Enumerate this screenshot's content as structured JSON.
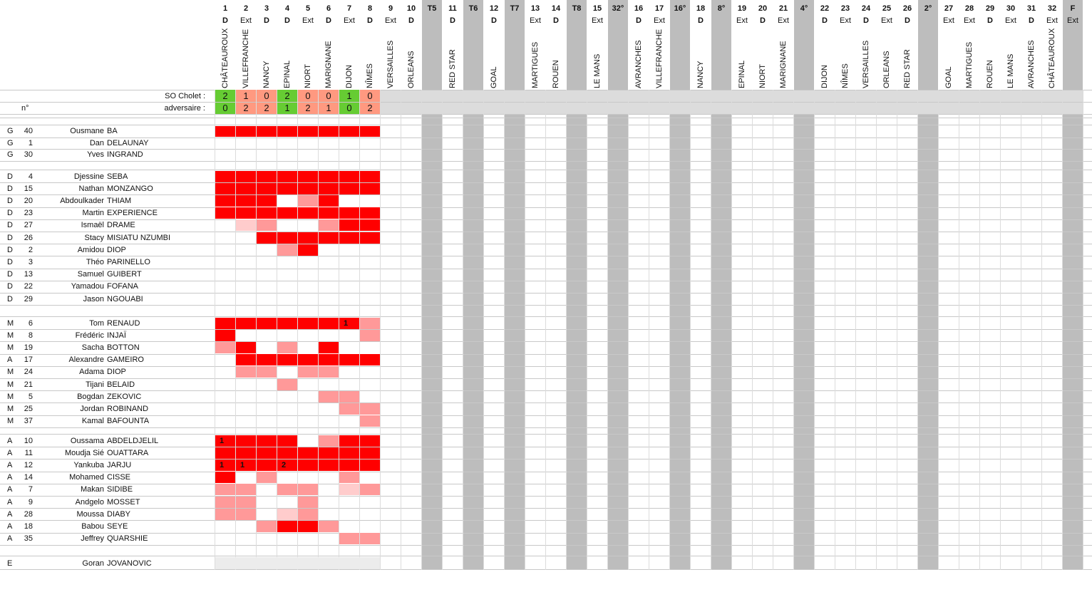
{
  "header": {
    "so_label": "SO Cholet :",
    "adv_label": "adversaire :",
    "n_label": "n°"
  },
  "columns": [
    {
      "label": "1",
      "venue": "D",
      "opponent": "CHÂTEAUROUX",
      "so": "2",
      "adv": "0",
      "result": "win"
    },
    {
      "label": "2",
      "venue": "Ext",
      "opponent": "VILLEFRANCHE",
      "so": "1",
      "adv": "2",
      "result": "loss"
    },
    {
      "label": "3",
      "venue": "D",
      "opponent": "NANCY",
      "so": "0",
      "adv": "2",
      "result": "loss"
    },
    {
      "label": "4",
      "venue": "D",
      "opponent": "EPINAL",
      "so": "2",
      "adv": "1",
      "result": "win"
    },
    {
      "label": "5",
      "venue": "Ext",
      "opponent": "NIORT",
      "so": "0",
      "adv": "2",
      "result": "loss"
    },
    {
      "label": "6",
      "venue": "D",
      "opponent": "MARIGNANE",
      "so": "0",
      "adv": "1",
      "result": "loss"
    },
    {
      "label": "7",
      "venue": "Ext",
      "opponent": "DIJON",
      "so": "1",
      "adv": "0",
      "result": "win"
    },
    {
      "label": "8",
      "venue": "D",
      "opponent": "NÎMES",
      "so": "0",
      "adv": "2",
      "result": "loss"
    },
    {
      "label": "9",
      "venue": "Ext",
      "opponent": "VERSAILLES",
      "so": "",
      "adv": "",
      "result": ""
    },
    {
      "label": "10",
      "venue": "D",
      "opponent": "ORLEANS",
      "so": "",
      "adv": "",
      "result": ""
    },
    {
      "label": "T5",
      "venue": "",
      "opponent": "",
      "so": "",
      "adv": "",
      "result": "",
      "cup": true
    },
    {
      "label": "11",
      "venue": "D",
      "opponent": "RED STAR",
      "so": "",
      "adv": "",
      "result": ""
    },
    {
      "label": "T6",
      "venue": "",
      "opponent": "",
      "so": "",
      "adv": "",
      "result": "",
      "cup": true
    },
    {
      "label": "12",
      "venue": "D",
      "opponent": "GOAL",
      "so": "",
      "adv": "",
      "result": ""
    },
    {
      "label": "T7",
      "venue": "",
      "opponent": "",
      "so": "",
      "adv": "",
      "result": "",
      "cup": true
    },
    {
      "label": "13",
      "venue": "Ext",
      "opponent": "MARTIGUES",
      "so": "",
      "adv": "",
      "result": ""
    },
    {
      "label": "14",
      "venue": "D",
      "opponent": "ROUEN",
      "so": "",
      "adv": "",
      "result": ""
    },
    {
      "label": "T8",
      "venue": "",
      "opponent": "",
      "so": "",
      "adv": "",
      "result": "",
      "cup": true
    },
    {
      "label": "15",
      "venue": "Ext",
      "opponent": "LE MANS",
      "so": "",
      "adv": "",
      "result": ""
    },
    {
      "label": "32°",
      "venue": "",
      "opponent": "",
      "so": "",
      "adv": "",
      "result": "",
      "cup": true
    },
    {
      "label": "16",
      "venue": "D",
      "opponent": "AVRANCHES",
      "so": "",
      "adv": "",
      "result": ""
    },
    {
      "label": "17",
      "venue": "Ext",
      "opponent": "VILLEFRANCHE",
      "so": "",
      "adv": "",
      "result": ""
    },
    {
      "label": "16°",
      "venue": "",
      "opponent": "",
      "so": "",
      "adv": "",
      "result": "",
      "cup": true
    },
    {
      "label": "18",
      "venue": "D",
      "opponent": "NANCY",
      "so": "",
      "adv": "",
      "result": ""
    },
    {
      "label": "8°",
      "venue": "",
      "opponent": "",
      "so": "",
      "adv": "",
      "result": "",
      "cup": true
    },
    {
      "label": "19",
      "venue": "Ext",
      "opponent": "EPINAL",
      "so": "",
      "adv": "",
      "result": ""
    },
    {
      "label": "20",
      "venue": "D",
      "opponent": "NIORT",
      "so": "",
      "adv": "",
      "result": ""
    },
    {
      "label": "21",
      "venue": "Ext",
      "opponent": "MARIGNANE",
      "so": "",
      "adv": "",
      "result": ""
    },
    {
      "label": "4°",
      "venue": "",
      "opponent": "",
      "so": "",
      "adv": "",
      "result": "",
      "cup": true
    },
    {
      "label": "22",
      "venue": "D",
      "opponent": "DIJON",
      "so": "",
      "adv": "",
      "result": ""
    },
    {
      "label": "23",
      "venue": "Ext",
      "opponent": "NÎMES",
      "so": "",
      "adv": "",
      "result": ""
    },
    {
      "label": "24",
      "venue": "D",
      "opponent": "VERSAILLES",
      "so": "",
      "adv": "",
      "result": ""
    },
    {
      "label": "25",
      "venue": "Ext",
      "opponent": "ORLEANS",
      "so": "",
      "adv": "",
      "result": ""
    },
    {
      "label": "26",
      "venue": "D",
      "opponent": "RED STAR",
      "so": "",
      "adv": "",
      "result": ""
    },
    {
      "label": "2°",
      "venue": "",
      "opponent": "",
      "so": "",
      "adv": "",
      "result": "",
      "cup": true
    },
    {
      "label": "27",
      "venue": "Ext",
      "opponent": "GOAL",
      "so": "",
      "adv": "",
      "result": ""
    },
    {
      "label": "28",
      "venue": "Ext",
      "opponent": "MARTIGUES",
      "so": "",
      "adv": "",
      "result": ""
    },
    {
      "label": "29",
      "venue": "D",
      "opponent": "ROUEN",
      "so": "",
      "adv": "",
      "result": ""
    },
    {
      "label": "30",
      "venue": "Ext",
      "opponent": "LE MANS",
      "so": "",
      "adv": "",
      "result": ""
    },
    {
      "label": "31",
      "venue": "D",
      "opponent": "AVRANCHES",
      "so": "",
      "adv": "",
      "result": ""
    },
    {
      "label": "32",
      "venue": "Ext",
      "opponent": "CHÂTEAUROUX",
      "so": "",
      "adv": "",
      "result": ""
    },
    {
      "label": "F",
      "venue": "Ext",
      "opponent": "",
      "so": "",
      "adv": "",
      "result": "",
      "cup": true
    }
  ],
  "colors": {
    "start": "#ff0000",
    "sub": "#ff9999",
    "light": "#ffcccc",
    "win": "#66cc33",
    "loss": "#ff9980",
    "cup": "#bdbdbd",
    "header_row": "#dcdcdc",
    "coach_row": "#ececec"
  },
  "groups": [
    {
      "players": [
        {
          "pos": "G",
          "num": "40",
          "first": "Ousmane",
          "last": "BA",
          "games": "SSSSSSSS",
          "goals": []
        },
        {
          "pos": "G",
          "num": "1",
          "first": "Dan",
          "last": "DELAUNAY",
          "games": "........",
          "goals": []
        },
        {
          "pos": "G",
          "num": "30",
          "first": "Yves",
          "last": "INGRAND",
          "games": "........",
          "goals": []
        }
      ]
    },
    {
      "players": [
        {
          "pos": "D",
          "num": "4",
          "first": "Djessine",
          "last": "SEBA",
          "games": "SSSSSSSS",
          "goals": []
        },
        {
          "pos": "D",
          "num": "15",
          "first": "Nathan",
          "last": "MONZANGO",
          "games": "SSSSSSSS",
          "goals": []
        },
        {
          "pos": "D",
          "num": "20",
          "first": "Abdoulkader",
          "last": "THIAM",
          "games": "SSS.bS..",
          "goals": []
        },
        {
          "pos": "D",
          "num": "23",
          "first": "Martin",
          "last": "EXPERIENCE",
          "games": "SSSSSSSS",
          "goals": []
        },
        {
          "pos": "D",
          "num": "27",
          "first": "Ismaël",
          "last": "DRAME",
          "games": ".lb..bSS",
          "goals": []
        },
        {
          "pos": "D",
          "num": "26",
          "first": "Stacy",
          "last": "MISIATU NZUMBI",
          "games": "..SSSSSS",
          "goals": []
        },
        {
          "pos": "D",
          "num": "2",
          "first": "Amidou",
          "last": "DIOP",
          "games": "...bS...",
          "goals": []
        },
        {
          "pos": "D",
          "num": "3",
          "first": "Théo",
          "last": "PARINELLO",
          "games": "........",
          "goals": []
        },
        {
          "pos": "D",
          "num": "13",
          "first": "Samuel",
          "last": "GUIBERT",
          "games": "........",
          "goals": []
        },
        {
          "pos": "D",
          "num": "22",
          "first": "Yamadou",
          "last": "FOFANA",
          "games": "........",
          "goals": []
        },
        {
          "pos": "D",
          "num": "29",
          "first": "Jason",
          "last": "NGOUABI",
          "games": "........",
          "goals": []
        }
      ]
    },
    {
      "players": [
        {
          "pos": "M",
          "num": "6",
          "first": "Tom",
          "last": "RENAUD",
          "games": "SSSSSSSb",
          "goals": [
            {
              "col": 6,
              "n": "1"
            }
          ]
        },
        {
          "pos": "M",
          "num": "8",
          "first": "Frédéric",
          "last": "INJAÏ",
          "games": "S......b",
          "goals": []
        },
        {
          "pos": "M",
          "num": "19",
          "first": "Sacha",
          "last": "BOTTON",
          "games": "bS.b.S..",
          "goals": []
        },
        {
          "pos": "A",
          "num": "17",
          "first": "Alexandre",
          "last": "GAMEIRO",
          "games": ".SSSSSSS",
          "goals": []
        },
        {
          "pos": "M",
          "num": "24",
          "first": "Adama",
          "last": "DIOP",
          "games": ".bb.bb..",
          "goals": []
        },
        {
          "pos": "M",
          "num": "21",
          "first": "Tijani",
          "last": "BELAID",
          "games": "...b....",
          "goals": []
        },
        {
          "pos": "M",
          "num": "5",
          "first": "Bogdan",
          "last": "ZEKOVIC",
          "games": ".....bb.",
          "goals": []
        },
        {
          "pos": "M",
          "num": "25",
          "first": "Jordan",
          "last": "ROBINAND",
          "games": "......bb",
          "goals": []
        },
        {
          "pos": "M",
          "num": "37",
          "first": "Kamal",
          "last": "BAFOUNTA",
          "games": ".......b",
          "goals": []
        }
      ]
    },
    {
      "players": [
        {
          "pos": "A",
          "num": "10",
          "first": "Oussama",
          "last": "ABDELDJELIL",
          "games": "SSSS.bSS",
          "goals": [
            {
              "col": 0,
              "n": "1"
            }
          ]
        },
        {
          "pos": "A",
          "num": "11",
          "first": "Moudja Sié",
          "last": "OUATTARA",
          "games": "SSSSSSSS",
          "goals": []
        },
        {
          "pos": "A",
          "num": "12",
          "first": "Yankuba",
          "last": "JARJU",
          "games": "SSSSSSSS",
          "goals": [
            {
              "col": 0,
              "n": "1"
            },
            {
              "col": 1,
              "n": "1"
            },
            {
              "col": 3,
              "n": "2"
            }
          ]
        },
        {
          "pos": "A",
          "num": "14",
          "first": "Mohamed",
          "last": "CISSE",
          "games": "S.b...b.",
          "goals": []
        },
        {
          "pos": "A",
          "num": "7",
          "first": "Makan",
          "last": "SIDIBE",
          "games": "bb.bb.lb",
          "goals": []
        },
        {
          "pos": "A",
          "num": "9",
          "first": "Andgelo",
          "last": "MOSSET",
          "games": "bb..b...",
          "goals": []
        },
        {
          "pos": "A",
          "num": "28",
          "first": "Moussa",
          "last": "DIABY",
          "games": "bb.lb...",
          "goals": []
        },
        {
          "pos": "A",
          "num": "18",
          "first": "Babou",
          "last": "SEYE",
          "games": "..bSSb..",
          "goals": []
        },
        {
          "pos": "A",
          "num": "35",
          "first": "Jeffrey",
          "last": "QUARSHIE",
          "games": "......bb",
          "goals": []
        }
      ]
    }
  ],
  "coach": {
    "pos": "E",
    "first": "Goran",
    "last": "JOVANOVIC"
  }
}
